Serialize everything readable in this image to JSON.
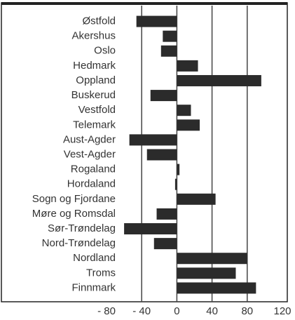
{
  "chart_data": {
    "type": "barh",
    "categories": [
      "Østfold",
      "Akershus",
      "Oslo",
      "Hedmark",
      "Oppland",
      "Buskerud",
      "Vestfold",
      "Telemark",
      "Aust-Agder",
      "Vest-Agder",
      "Rogaland",
      "Hordaland",
      "Sogn og Fjordane",
      "Møre og Romsdal",
      "Sør-Trøndelag",
      "Nord-Trøndelag",
      "Nordland",
      "Troms",
      "Finnmark"
    ],
    "values": [
      -46,
      -16,
      -18,
      24,
      96,
      -30,
      16,
      26,
      -54,
      -34,
      3,
      -2,
      44,
      -23,
      -60,
      -26,
      80,
      67,
      90
    ],
    "color": "#2b2b2b",
    "xlim": [
      -80,
      120
    ],
    "xticks": [
      {
        "value": -80,
        "label": "- 80"
      },
      {
        "value": -40,
        "label": "- 40"
      },
      0,
      40,
      80,
      120
    ],
    "grid": true
  }
}
